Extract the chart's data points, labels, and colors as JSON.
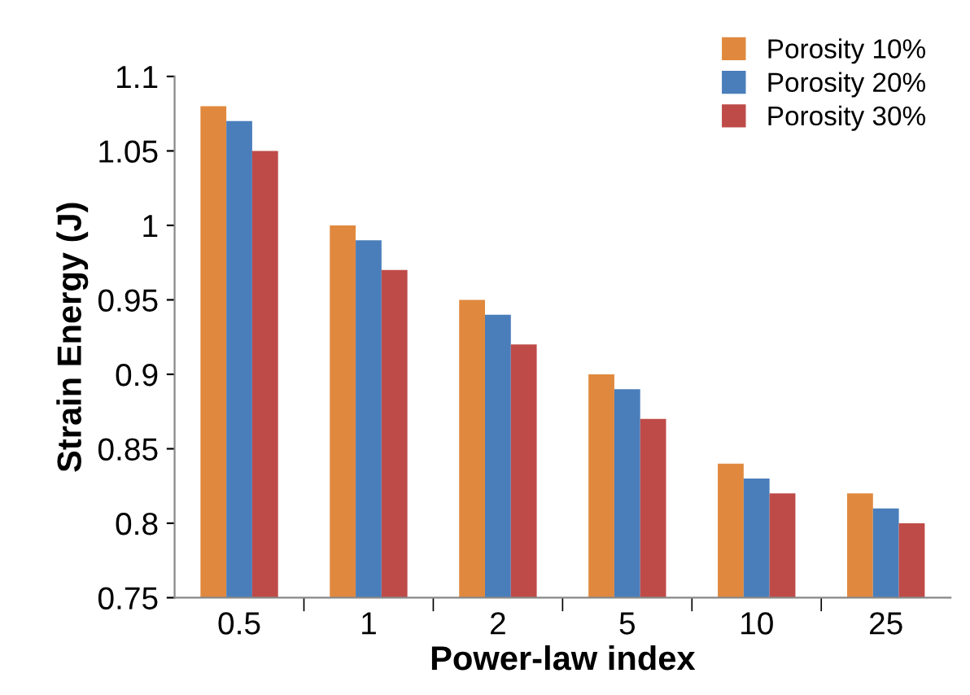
{
  "chart_data": {
    "type": "bar",
    "xlabel": "Power-law index",
    "ylabel": "Strain Energy (J)",
    "categories": [
      "0.5",
      "1",
      "2",
      "5",
      "10",
      "25"
    ],
    "series": [
      {
        "name": "Porosity 10%",
        "color": "#e0893e",
        "values": [
          1.08,
          1.0,
          0.95,
          0.9,
          0.84,
          0.82
        ]
      },
      {
        "name": "Porosity 20%",
        "color": "#4a7ebb",
        "values": [
          1.07,
          0.99,
          0.94,
          0.89,
          0.83,
          0.81
        ]
      },
      {
        "name": "Porosity 30%",
        "color": "#be4b48",
        "values": [
          1.05,
          0.97,
          0.92,
          0.87,
          0.82,
          0.8
        ]
      }
    ],
    "ylim": [
      0.75,
      1.1
    ],
    "yticks": [
      0.75,
      0.8,
      0.85,
      0.9,
      0.95,
      1,
      1.05,
      1.1
    ],
    "grid": false,
    "legend": "top right"
  }
}
